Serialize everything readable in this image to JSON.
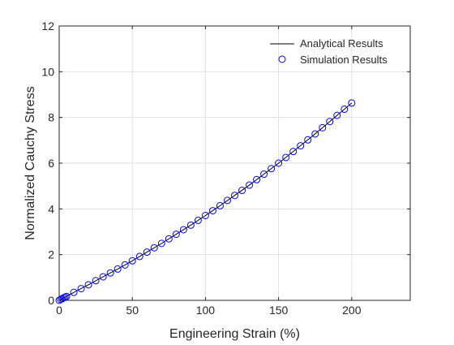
{
  "chart_data": {
    "type": "line",
    "title": "",
    "xlabel": "Engineering Strain (%)",
    "ylabel": "Normalized Cauchy Stress",
    "xlim": [
      0,
      240
    ],
    "ylim": [
      0,
      12
    ],
    "x_ticks": [
      0,
      50,
      100,
      150,
      200
    ],
    "y_ticks": [
      0,
      2,
      4,
      6,
      8,
      10,
      12
    ],
    "grid": true,
    "legend": "top-right",
    "series": [
      {
        "name": "Analytical Results",
        "style": "line",
        "color": "#000000",
        "x": [
          0,
          10,
          20,
          30,
          40,
          50,
          60,
          70,
          80,
          90,
          100,
          110,
          120,
          130,
          140,
          150,
          160,
          170,
          180,
          190,
          200
        ],
        "y": [
          0,
          0.35,
          0.68,
          1.03,
          1.37,
          1.73,
          2.11,
          2.49,
          2.89,
          3.29,
          3.71,
          4.14,
          4.59,
          5.04,
          5.52,
          6.0,
          6.51,
          7.02,
          7.55,
          8.09,
          8.63
        ]
      },
      {
        "name": "Simulation Results",
        "style": "circle-markers",
        "color": "#0000ff",
        "x": [
          0,
          1,
          2,
          3,
          4,
          5,
          10,
          15,
          20,
          25,
          30,
          35,
          40,
          45,
          50,
          55,
          60,
          65,
          70,
          75,
          80,
          85,
          90,
          95,
          100,
          105,
          110,
          115,
          120,
          125,
          130,
          135,
          140,
          145,
          150,
          155,
          160,
          165,
          170,
          175,
          180,
          185,
          190,
          195,
          200
        ],
        "y": [
          0,
          0.04,
          0.07,
          0.11,
          0.14,
          0.17,
          0.35,
          0.51,
          0.68,
          0.86,
          1.03,
          1.2,
          1.37,
          1.55,
          1.73,
          1.92,
          2.11,
          2.3,
          2.49,
          2.69,
          2.89,
          3.09,
          3.29,
          3.5,
          3.71,
          3.92,
          4.14,
          4.37,
          4.59,
          4.81,
          5.04,
          5.28,
          5.52,
          5.76,
          6.0,
          6.25,
          6.51,
          6.76,
          7.02,
          7.28,
          7.55,
          7.82,
          8.09,
          8.36,
          8.63
        ]
      }
    ]
  }
}
